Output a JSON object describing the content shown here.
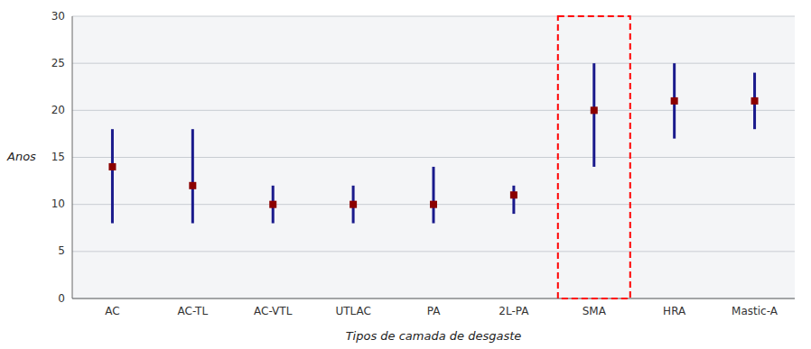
{
  "chart_data": {
    "type": "range",
    "xlabel": "Tipos de camada de desgaste",
    "ylabel": "Anos",
    "categories": [
      "AC",
      "AC-TL",
      "AC-VTL",
      "UTLAC",
      "PA",
      "2L-PA",
      "SMA",
      "HRA",
      "Mastic-A"
    ],
    "series": [
      {
        "type": "range",
        "color": "#1a1a8c",
        "lower": [
          8,
          8,
          8,
          8,
          8,
          9,
          14,
          17,
          18
        ],
        "upper": [
          18,
          18,
          12,
          12,
          14,
          12,
          25,
          25,
          24
        ]
      },
      {
        "type": "scatter",
        "marker": "square",
        "color": "#8B0000",
        "values": [
          14,
          12,
          10,
          10,
          10,
          11,
          20,
          21,
          21
        ]
      }
    ],
    "highlight": {
      "category": "SMA",
      "color": "red",
      "line_style": "dashed"
    },
    "ylim": [
      0,
      30
    ],
    "yticks": [
      0,
      5,
      10,
      15,
      20,
      25,
      30
    ],
    "grid": true
  }
}
